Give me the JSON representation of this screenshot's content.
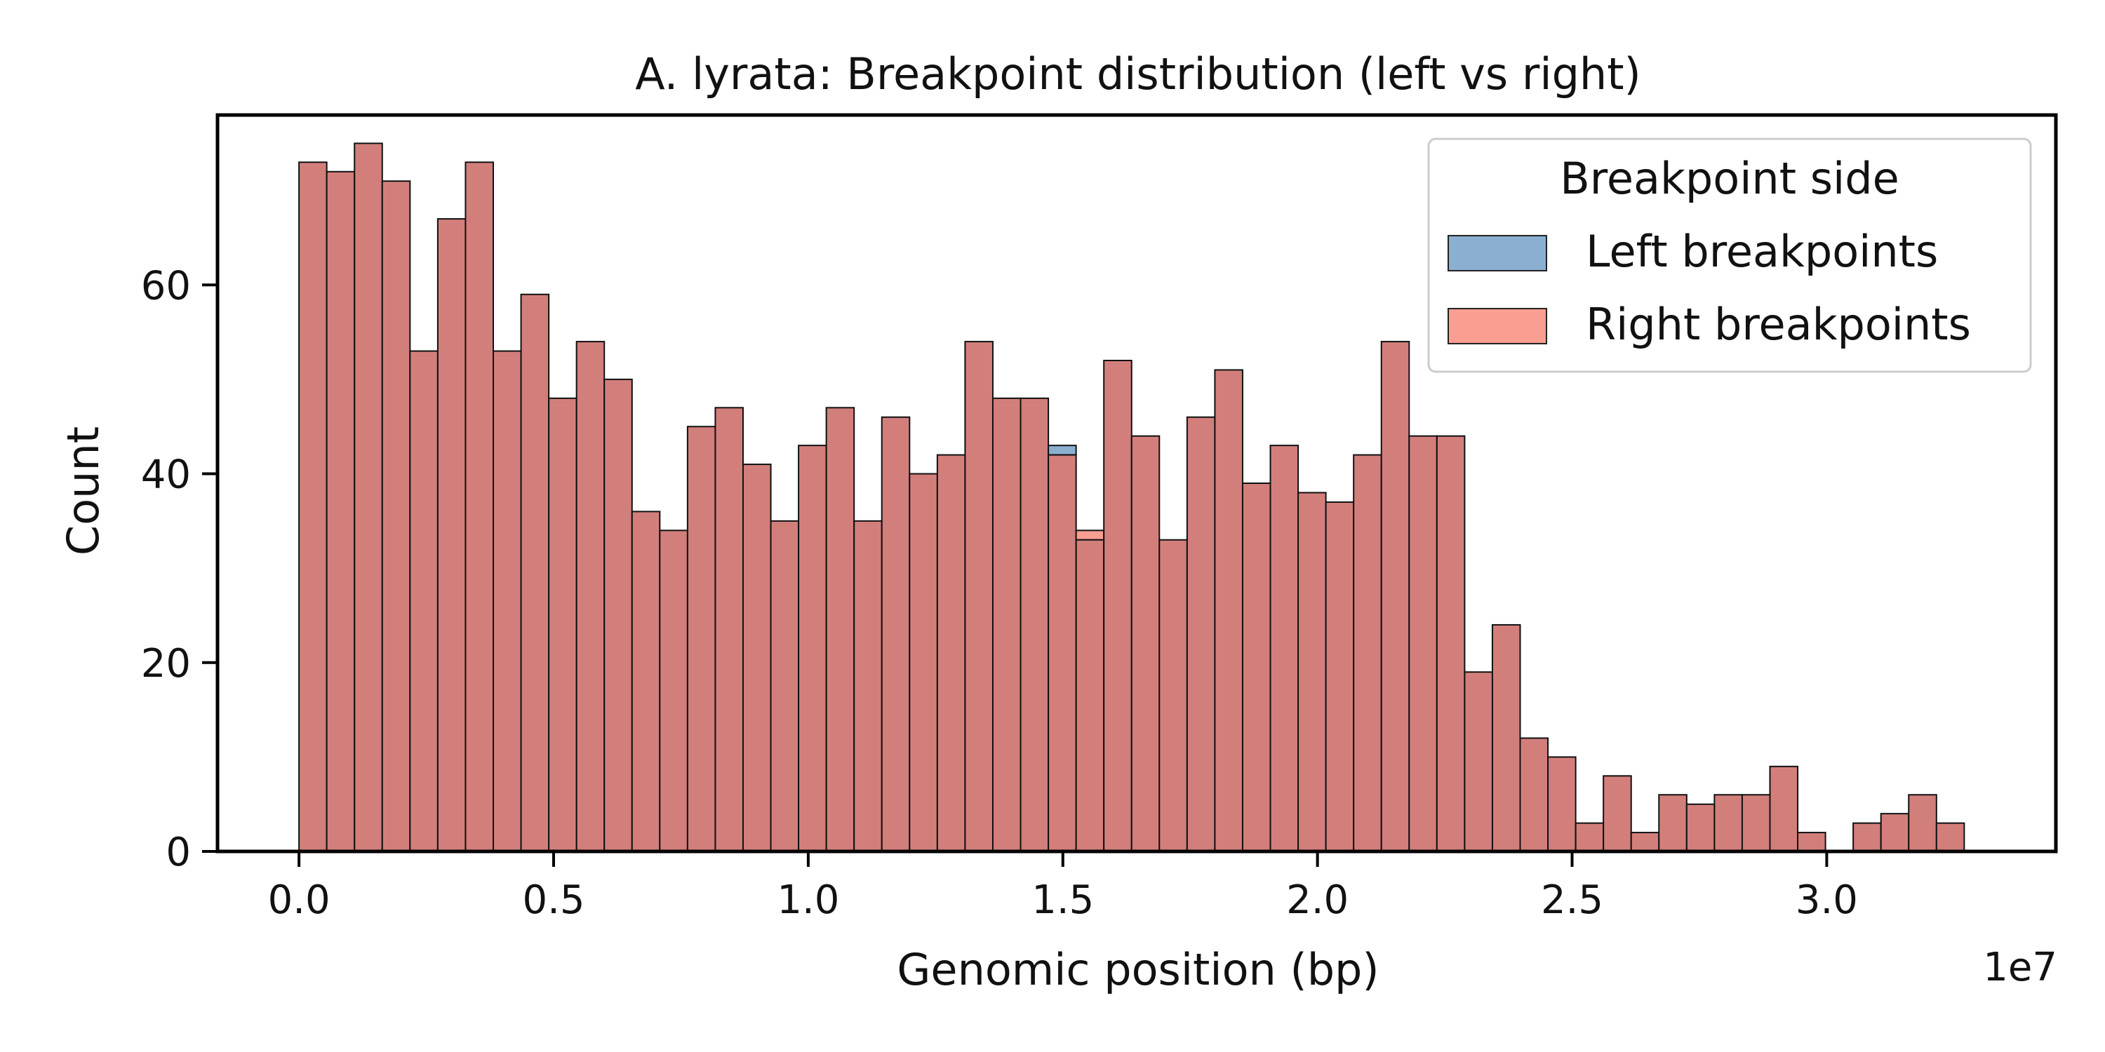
{
  "chart_data": {
    "type": "bar",
    "title": "A. lyrata: Breakpoint distribution (left vs right)",
    "xlabel": "Genomic position (bp)",
    "ylabel": "Count",
    "x_offset_text": "1e7",
    "xlim": [
      -0.16,
      3.45
    ],
    "ylim": [
      0,
      78
    ],
    "x_scale_multiplier": 10000000,
    "x_ticks": [
      0.0,
      0.5,
      1.0,
      1.5,
      2.0,
      2.5,
      3.0
    ],
    "x_tick_labels": [
      "0.0",
      "0.5",
      "1.0",
      "1.5",
      "2.0",
      "2.5",
      "3.0"
    ],
    "y_ticks": [
      0,
      20,
      40,
      60
    ],
    "y_tick_labels": [
      "0",
      "20",
      "40",
      "60"
    ],
    "grid": false,
    "legend": {
      "title": "Breakpoint side",
      "placement": "top-right",
      "entries": [
        "Left breakpoints",
        "Right breakpoints"
      ]
    },
    "bin_start": 0.0,
    "bin_width": 0.0545,
    "series": [
      {
        "name": "Left breakpoints",
        "color": "#8aafd0",
        "values": [
          73,
          72,
          75,
          71,
          53,
          67,
          73,
          53,
          59,
          48,
          54,
          50,
          36,
          34,
          45,
          47,
          41,
          35,
          43,
          47,
          35,
          46,
          40,
          42,
          54,
          48,
          48,
          43,
          33,
          52,
          44,
          33,
          46,
          51,
          39,
          43,
          38,
          37,
          42,
          54,
          44,
          44,
          19,
          24,
          12,
          10,
          3,
          8,
          2,
          6,
          5,
          6,
          6,
          9,
          2,
          0,
          3,
          4,
          6,
          3
        ]
      },
      {
        "name": "Right breakpoints",
        "color": "#fa9e92",
        "values": [
          73,
          72,
          75,
          71,
          53,
          67,
          73,
          53,
          59,
          48,
          54,
          50,
          36,
          34,
          45,
          47,
          41,
          35,
          43,
          47,
          35,
          46,
          40,
          42,
          54,
          48,
          48,
          42,
          34,
          52,
          44,
          33,
          46,
          51,
          39,
          43,
          38,
          37,
          42,
          54,
          44,
          44,
          19,
          24,
          12,
          10,
          3,
          8,
          2,
          6,
          5,
          6,
          6,
          9,
          2,
          0,
          3,
          4,
          6,
          3
        ]
      }
    ],
    "overlap_color": "#d27f7c"
  }
}
